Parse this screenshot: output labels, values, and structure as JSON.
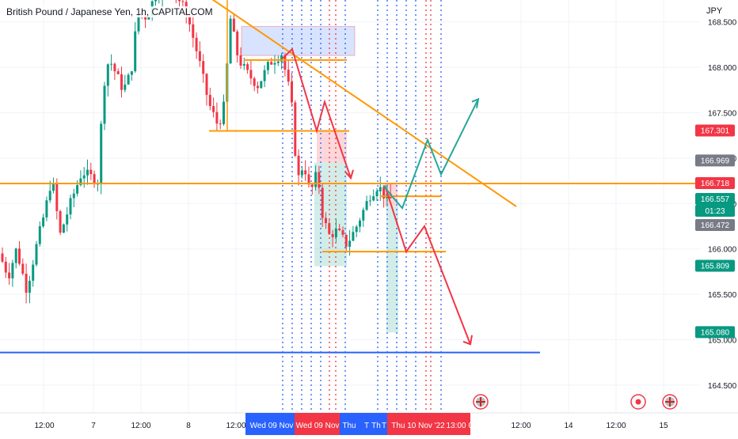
{
  "chart_data": {
    "type": "candlestick",
    "title": "British Pound / Japanese Yen, 1h, CAPITALCOM",
    "currency": "JPY",
    "ylim": [
      164.25,
      168.65
    ],
    "y_ticks": [
      "164.500",
      "165.000",
      "165.500",
      "166.000",
      "166.500",
      "167.000",
      "167.500",
      "168.000",
      "168.500"
    ],
    "x_ticks": [
      "12:00",
      "7",
      "12:00",
      "8",
      "12:00",
      "Wed 09 Nov",
      "Wed 09 Nov",
      "Thu",
      "T",
      "Th",
      "T",
      "Thu 10 Nov '22",
      "13:00",
      "00",
      "12:00",
      "14",
      "12:00",
      "15"
    ],
    "price_labels": [
      {
        "text": "167.301",
        "color": "#f23645"
      },
      {
        "text": "166.969",
        "color": "#787b86"
      },
      {
        "text": "166.718",
        "color": "#f23645"
      },
      {
        "text": "166.557",
        "color": "#089981"
      },
      {
        "text": "01:23",
        "color": "#089981"
      },
      {
        "text": "166.472",
        "color": "#787b86"
      },
      {
        "text": "165.809",
        "color": "#089981"
      },
      {
        "text": "165.080",
        "color": "#089981"
      }
    ],
    "levels": [
      {
        "name": "support",
        "price": 166.72,
        "color": "#ff9800"
      },
      {
        "name": "target-low",
        "price": 164.86,
        "color": "#2962ff"
      }
    ],
    "colors": {
      "up": "#089981",
      "down": "#f23645",
      "trend": "#ff9800",
      "grid": "#f0f3fa"
    }
  }
}
